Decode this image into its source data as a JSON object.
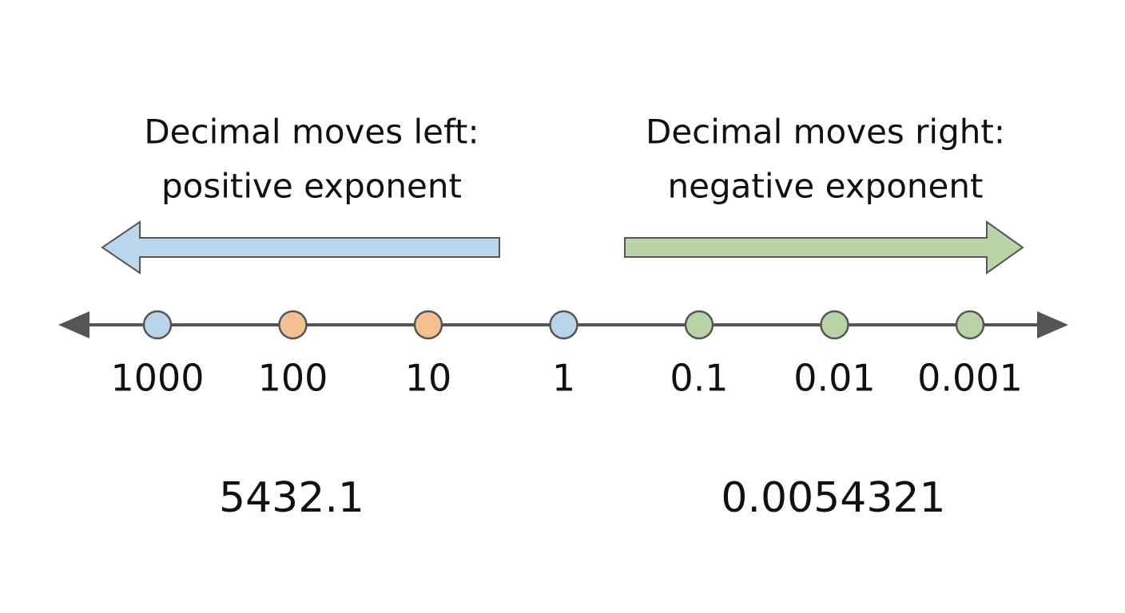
{
  "left_heading": {
    "line1": "Decimal moves left:",
    "line2": "positive exponent"
  },
  "right_heading": {
    "line1": "Decimal moves right:",
    "line2": "negative exponent"
  },
  "points": [
    {
      "label": "1000",
      "color": "#b9d3ea"
    },
    {
      "label": "100",
      "color": "#f5c08f"
    },
    {
      "label": "10",
      "color": "#f5c08f"
    },
    {
      "label": "1",
      "color": "#b9d3ea"
    },
    {
      "label": "0.1",
      "color": "#b8d4a6"
    },
    {
      "label": "0.01",
      "color": "#b8d4a6"
    },
    {
      "label": "0.001",
      "color": "#b8d4a6"
    }
  ],
  "examples": {
    "left": "5432.1",
    "right": "0.0054321"
  }
}
